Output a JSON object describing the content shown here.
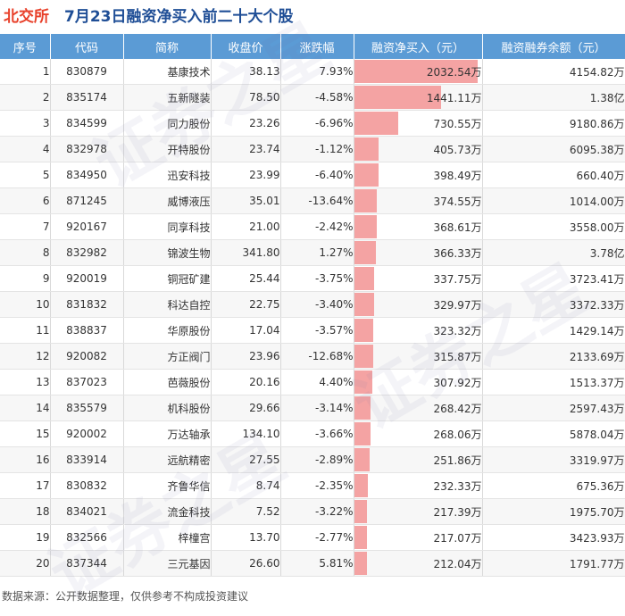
{
  "header": {
    "exchange": "北交所",
    "title": "7月23日融资净买入前二十大个股"
  },
  "footer": "数据来源：公开数据整理，仅供参考不构成投资建议",
  "watermark": [
    "证券之星",
    "证券之星",
    "证券之星"
  ],
  "colors": {
    "header_bg": "#5b9bd5",
    "up": "#e8402a",
    "down": "#2e9f3a",
    "bar": "#f4a3a3",
    "title_red": "#e8402a",
    "title_blue": "#1f4e96"
  },
  "chart_data": {
    "type": "table",
    "columns": [
      "序号",
      "代码",
      "简称",
      "收盘价",
      "涨跌幅",
      "融资净买入（元）",
      "融资融券余额（元）"
    ],
    "rows": [
      {
        "idx": "1",
        "code": "830879",
        "name": "基康技术",
        "price": "38.13",
        "change": "7.93%",
        "net": "2032.54万",
        "bal": "4154.82万",
        "net_value": 2032.54
      },
      {
        "idx": "2",
        "code": "835174",
        "name": "五新隧装",
        "price": "78.50",
        "change": "-4.58%",
        "net": "1441.11万",
        "bal": "1.38亿",
        "net_value": 1441.11
      },
      {
        "idx": "3",
        "code": "834599",
        "name": "同力股份",
        "price": "23.26",
        "change": "-6.96%",
        "net": "730.55万",
        "bal": "9180.86万",
        "net_value": 730.55
      },
      {
        "idx": "4",
        "code": "832978",
        "name": "开特股份",
        "price": "23.74",
        "change": "-1.12%",
        "net": "405.73万",
        "bal": "6095.38万",
        "net_value": 405.73
      },
      {
        "idx": "5",
        "code": "834950",
        "name": "迅安科技",
        "price": "23.99",
        "change": "-6.40%",
        "net": "398.49万",
        "bal": "660.40万",
        "net_value": 398.49
      },
      {
        "idx": "6",
        "code": "871245",
        "name": "威博液压",
        "price": "35.01",
        "change": "-13.64%",
        "net": "374.55万",
        "bal": "1014.00万",
        "net_value": 374.55
      },
      {
        "idx": "7",
        "code": "920167",
        "name": "同享科技",
        "price": "21.00",
        "change": "-2.42%",
        "net": "368.61万",
        "bal": "3558.00万",
        "net_value": 368.61
      },
      {
        "idx": "8",
        "code": "832982",
        "name": "锦波生物",
        "price": "341.80",
        "change": "1.27%",
        "net": "366.33万",
        "bal": "3.78亿",
        "net_value": 366.33
      },
      {
        "idx": "9",
        "code": "920019",
        "name": "铜冠矿建",
        "price": "25.44",
        "change": "-3.75%",
        "net": "337.75万",
        "bal": "3723.41万",
        "net_value": 337.75
      },
      {
        "idx": "10",
        "code": "831832",
        "name": "科达自控",
        "price": "22.75",
        "change": "-3.40%",
        "net": "329.97万",
        "bal": "3372.33万",
        "net_value": 329.97
      },
      {
        "idx": "11",
        "code": "838837",
        "name": "华原股份",
        "price": "17.04",
        "change": "-3.57%",
        "net": "323.32万",
        "bal": "1429.14万",
        "net_value": 323.32
      },
      {
        "idx": "12",
        "code": "920082",
        "name": "方正阀门",
        "price": "23.96",
        "change": "-12.68%",
        "net": "315.87万",
        "bal": "2133.69万",
        "net_value": 315.87
      },
      {
        "idx": "13",
        "code": "837023",
        "name": "芭薇股份",
        "price": "20.16",
        "change": "4.40%",
        "net": "307.92万",
        "bal": "1513.37万",
        "net_value": 307.92
      },
      {
        "idx": "14",
        "code": "835579",
        "name": "机科股份",
        "price": "29.66",
        "change": "-3.14%",
        "net": "268.42万",
        "bal": "2597.43万",
        "net_value": 268.42
      },
      {
        "idx": "15",
        "code": "920002",
        "name": "万达轴承",
        "price": "134.10",
        "change": "-3.66%",
        "net": "268.06万",
        "bal": "5878.04万",
        "net_value": 268.06
      },
      {
        "idx": "16",
        "code": "833914",
        "name": "远航精密",
        "price": "27.55",
        "change": "-2.89%",
        "net": "251.86万",
        "bal": "3319.97万",
        "net_value": 251.86
      },
      {
        "idx": "17",
        "code": "830832",
        "name": "齐鲁华信",
        "price": "8.74",
        "change": "-2.35%",
        "net": "232.33万",
        "bal": "675.36万",
        "net_value": 232.33
      },
      {
        "idx": "18",
        "code": "834021",
        "name": "流金科技",
        "price": "7.52",
        "change": "-3.22%",
        "net": "217.39万",
        "bal": "1975.70万",
        "net_value": 217.39
      },
      {
        "idx": "19",
        "code": "832566",
        "name": "梓橦宫",
        "price": "13.70",
        "change": "-2.77%",
        "net": "217.07万",
        "bal": "3423.93万",
        "net_value": 217.07
      },
      {
        "idx": "20",
        "code": "837344",
        "name": "三元基因",
        "price": "26.60",
        "change": "5.81%",
        "net": "212.04万",
        "bal": "1791.77万",
        "net_value": 212.04
      }
    ]
  }
}
